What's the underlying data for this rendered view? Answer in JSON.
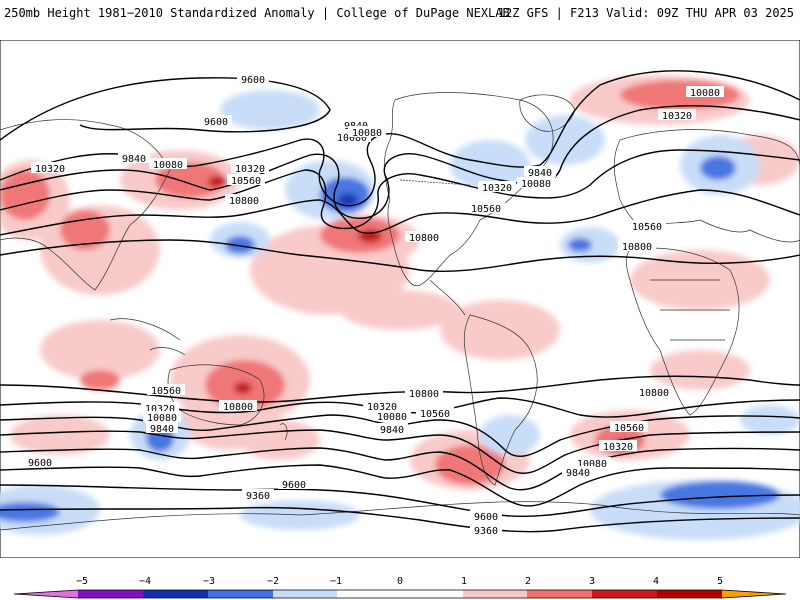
{
  "header": {
    "title_left": "250mb Height 1981−2010 Standardized Anomaly | College of DuPage NEXLAB",
    "title_right": "12Z GFS | F213 Valid: 09Z THU APR 03 2025"
  },
  "colors": {
    "neg5": "#e070e0",
    "neg4": "#8010c0",
    "neg3": "#1030b0",
    "neg2": "#4070e0",
    "neg1": "#c6dcf8",
    "zero": "#ffffff",
    "pos1": "#f8c8c8",
    "pos2": "#f07070",
    "pos3": "#d01818",
    "pos4": "#b00000",
    "pos5": "#ffa000"
  },
  "colorbar": {
    "ticks": [
      "−5",
      "−4",
      "−3",
      "−2",
      "−1",
      "0",
      "1",
      "2",
      "3",
      "4",
      "5"
    ]
  },
  "contour_labels": [
    {
      "text": "9600"
    },
    {
      "text": "9600"
    },
    {
      "text": "9840"
    },
    {
      "text": "10080"
    },
    {
      "text": "10320"
    },
    {
      "text": "10560"
    },
    {
      "text": "10800"
    },
    {
      "text": "10320"
    },
    {
      "text": "9840"
    },
    {
      "text": "10080"
    },
    {
      "text": "10320"
    },
    {
      "text": "10560"
    },
    {
      "text": "9840"
    },
    {
      "text": "10080"
    },
    {
      "text": "10320"
    },
    {
      "text": "10080"
    },
    {
      "text": "10800"
    },
    {
      "text": "10080"
    },
    {
      "text": "10320"
    },
    {
      "text": "10560"
    },
    {
      "text": "10800"
    },
    {
      "text": "10560"
    },
    {
      "text": "10320"
    },
    {
      "text": "10080"
    },
    {
      "text": "9840"
    },
    {
      "text": "10800"
    },
    {
      "text": "10320"
    },
    {
      "text": "10080"
    },
    {
      "text": "9840"
    },
    {
      "text": "10560"
    },
    {
      "text": "10800"
    },
    {
      "text": "10800"
    },
    {
      "text": "10560"
    },
    {
      "text": "10320"
    },
    {
      "text": "10080"
    },
    {
      "text": "9840"
    },
    {
      "text": "9600"
    },
    {
      "text": "9360"
    },
    {
      "text": "9600"
    },
    {
      "text": "9600"
    },
    {
      "text": "9360"
    }
  ]
}
